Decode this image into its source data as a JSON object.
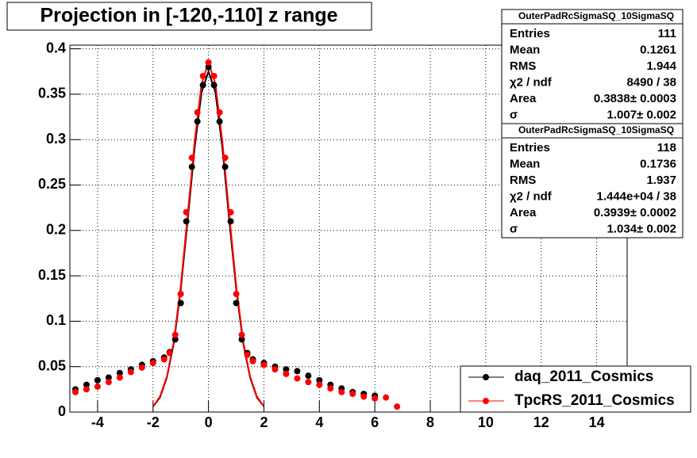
{
  "chart_data": {
    "type": "scatter",
    "title": "Projection in [-120,-110] z range",
    "xlim": [
      -5,
      15.1
    ],
    "xticks": [
      -4,
      -2,
      0,
      2,
      4,
      6,
      8,
      10,
      12,
      14
    ],
    "ylim": [
      0,
      0.404
    ],
    "yticks": [
      0,
      0.05,
      0.1,
      0.15,
      0.2,
      0.25,
      0.3,
      0.35,
      0.4
    ],
    "grid": true,
    "legend": "bottom-right",
    "series": [
      {
        "name": "daq_2011_Cosmics",
        "color": "#000000",
        "x": [
          -4.8,
          -4.4,
          -4.0,
          -3.6,
          -3.2,
          -2.8,
          -2.4,
          -2.0,
          -1.6,
          -1.4,
          -1.2,
          -1.0,
          -0.8,
          -0.6,
          -0.4,
          -0.2,
          0,
          0.2,
          0.4,
          0.6,
          0.8,
          1.0,
          1.2,
          1.4,
          1.6,
          2.0,
          2.4,
          2.8,
          3.2,
          3.6,
          4.0,
          4.4,
          4.8,
          5.2,
          5.6,
          6.0
        ],
        "values": [
          0.025,
          0.03,
          0.035,
          0.038,
          0.043,
          0.047,
          0.052,
          0.056,
          0.06,
          0.066,
          0.08,
          0.12,
          0.21,
          0.27,
          0.32,
          0.36,
          0.38,
          0.36,
          0.32,
          0.27,
          0.21,
          0.12,
          0.08,
          0.065,
          0.058,
          0.054,
          0.05,
          0.047,
          0.045,
          0.04,
          0.035,
          0.03,
          0.026,
          0.022,
          0.02,
          0.018
        ]
      },
      {
        "name": "TpcRS_2011_Cosmics",
        "color": "#ff0000",
        "x": [
          -4.8,
          -4.4,
          -4.0,
          -3.6,
          -3.2,
          -2.8,
          -2.4,
          -2.0,
          -1.6,
          -1.4,
          -1.2,
          -1.0,
          -0.8,
          -0.6,
          -0.4,
          -0.2,
          0,
          0.2,
          0.4,
          0.6,
          0.8,
          1.0,
          1.2,
          1.4,
          1.6,
          2.0,
          2.4,
          2.8,
          3.2,
          3.6,
          4.0,
          4.4,
          4.8,
          5.2,
          5.6,
          6.0,
          6.4,
          6.8
        ],
        "values": [
          0.022,
          0.025,
          0.028,
          0.033,
          0.038,
          0.044,
          0.049,
          0.054,
          0.058,
          0.065,
          0.085,
          0.13,
          0.22,
          0.28,
          0.33,
          0.37,
          0.385,
          0.37,
          0.33,
          0.28,
          0.22,
          0.13,
          0.085,
          0.063,
          0.056,
          0.052,
          0.047,
          0.042,
          0.037,
          0.033,
          0.03,
          0.026,
          0.022,
          0.02,
          0.017,
          0.015,
          0.016,
          0.006
        ]
      }
    ],
    "fits": [
      {
        "color": "#000000",
        "x": [
          -2,
          -1.75,
          -1.5,
          -1.25,
          -1,
          -0.75,
          -0.5,
          -0.25,
          0,
          0.25,
          0.5,
          0.75,
          1,
          1.25,
          1.5,
          1.75,
          2
        ],
        "values": [
          0.006,
          0.016,
          0.038,
          0.076,
          0.135,
          0.211,
          0.291,
          0.352,
          0.375,
          0.352,
          0.291,
          0.211,
          0.135,
          0.076,
          0.038,
          0.016,
          0.006
        ]
      },
      {
        "color": "#ff0000",
        "x": [
          -2,
          -1.75,
          -1.5,
          -1.25,
          -1,
          -0.75,
          -0.5,
          -0.25,
          0,
          0.25,
          0.5,
          0.75,
          1,
          1.25,
          1.5,
          1.75,
          2
        ],
        "values": [
          0.006,
          0.017,
          0.039,
          0.078,
          0.139,
          0.217,
          0.298,
          0.361,
          0.385,
          0.361,
          0.298,
          0.217,
          0.139,
          0.078,
          0.039,
          0.017,
          0.006
        ]
      }
    ],
    "stats_boxes": [
      {
        "title": "OuterPadRcSigmaSQ_10SigmaSQ",
        "rows": [
          {
            "label": "Entries",
            "value": 111
          },
          {
            "label": "Mean",
            "value": 0.1261
          },
          {
            "label": "RMS",
            "value": 1.944
          },
          {
            "label": "χ2 / ndf",
            "value": "8490 / 38"
          },
          {
            "label": "Area",
            "value": "0.3838± 0.0003"
          },
          {
            "label": "σ",
            "value": "1.007± 0.002"
          }
        ]
      },
      {
        "title": "OuterPadRcSigmaSQ_10SigmaSQ",
        "rows": [
          {
            "label": "Entries",
            "value": 118
          },
          {
            "label": "Mean",
            "value": 0.1736
          },
          {
            "label": "RMS",
            "value": 1.937
          },
          {
            "label": "χ2 / ndf",
            "value": "1.444e+04 / 38"
          },
          {
            "label": "Area",
            "value": "0.3939± 0.0002"
          },
          {
            "label": "σ",
            "value": "1.034± 0.002"
          }
        ]
      }
    ]
  }
}
